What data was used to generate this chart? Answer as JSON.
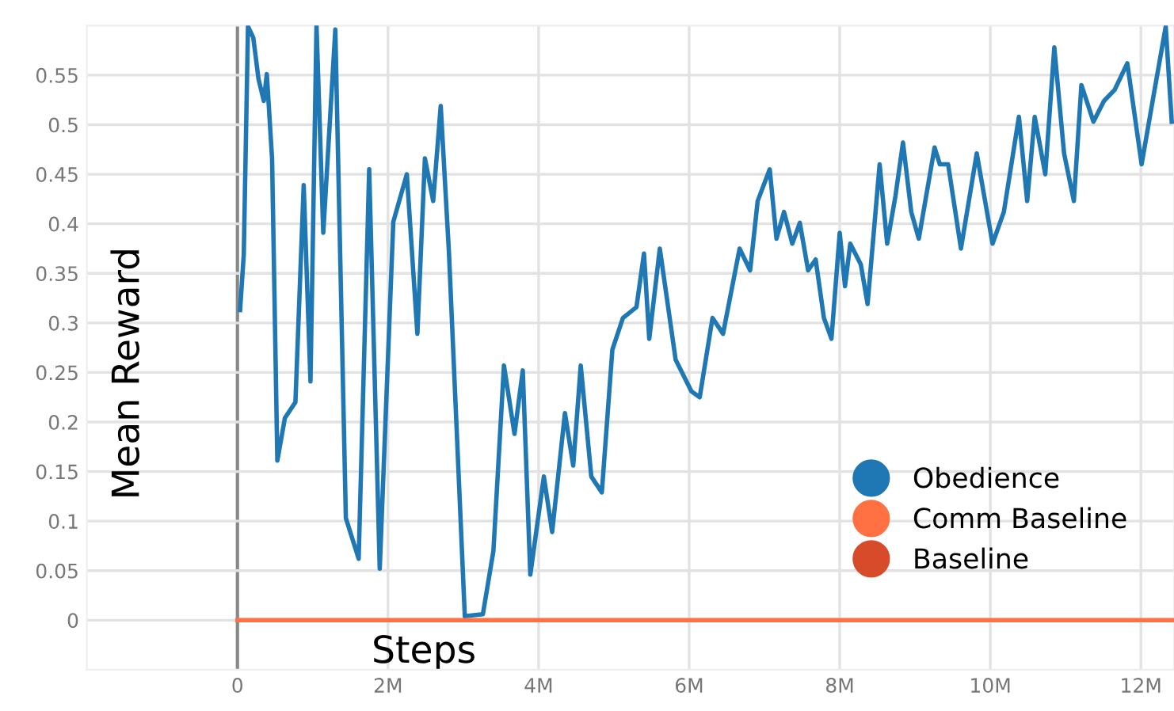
{
  "chart_data": {
    "type": "line",
    "xlabel": "Steps",
    "ylabel": "Mean Reward",
    "xlim": [
      -2000000,
      12440000
    ],
    "ylim": [
      -0.05,
      0.6
    ],
    "xticks": [
      0,
      {
        "value": 2000000,
        "label": "2M"
      },
      {
        "value": 4000000,
        "label": "4M"
      },
      {
        "value": 6000000,
        "label": "6M"
      },
      {
        "value": 8000000,
        "label": "8M"
      },
      {
        "value": 10000000,
        "label": "10M"
      },
      {
        "value": 12000000,
        "label": "12M"
      }
    ],
    "yticks": [
      0,
      0.05,
      0.1,
      0.15,
      0.2,
      0.25,
      0.3,
      0.35,
      0.4,
      0.45,
      0.5,
      0.55
    ],
    "grid": true,
    "legend": "bottom right",
    "line_style": "solid",
    "series": [
      {
        "name": "Obedience",
        "color": "#1f77b4",
        "x": [
          35000,
          84000,
          140000,
          210000,
          280000,
          350000,
          390000,
          460000,
          530000,
          630000,
          770000,
          880000,
          970000,
          1050000,
          1140000,
          1300000,
          1440000,
          1610000,
          1750000,
          1890000,
          2070000,
          2250000,
          2390000,
          2490000,
          2600000,
          2700000,
          2810000,
          3020000,
          3260000,
          3400000,
          3540000,
          3680000,
          3790000,
          3890000,
          4070000,
          4180000,
          4350000,
          4460000,
          4560000,
          4700000,
          4840000,
          4980000,
          5120000,
          5300000,
          5400000,
          5470000,
          5610000,
          5820000,
          6030000,
          6140000,
          6310000,
          6450000,
          6670000,
          6810000,
          6910000,
          7070000,
          7160000,
          7260000,
          7370000,
          7470000,
          7580000,
          7680000,
          7790000,
          7890000,
          8000000,
          8070000,
          8140000,
          8280000,
          8370000,
          8530000,
          8630000,
          8740000,
          8840000,
          8950000,
          9050000,
          9260000,
          9330000,
          9440000,
          9610000,
          9820000,
          10030000,
          10180000,
          10380000,
          10490000,
          10590000,
          10730000,
          10850000,
          10980000,
          11110000,
          11210000,
          11370000,
          11510000,
          11650000,
          11820000,
          12010000,
          12170000,
          12330000,
          12410000
        ],
        "values": [
          0.313,
          0.369,
          0.599,
          0.588,
          0.546,
          0.524,
          0.551,
          0.466,
          0.161,
          0.204,
          0.22,
          0.439,
          0.241,
          0.6,
          0.391,
          0.596,
          0.103,
          0.062,
          0.455,
          0.052,
          0.402,
          0.45,
          0.289,
          0.466,
          0.423,
          0.519,
          0.37,
          0.004,
          0.006,
          0.07,
          0.257,
          0.188,
          0.252,
          0.046,
          0.145,
          0.089,
          0.209,
          0.156,
          0.257,
          0.145,
          0.129,
          0.273,
          0.305,
          0.316,
          0.37,
          0.284,
          0.375,
          0.263,
          0.231,
          0.225,
          0.305,
          0.289,
          0.375,
          0.353,
          0.423,
          0.455,
          0.385,
          0.412,
          0.38,
          0.401,
          0.353,
          0.364,
          0.305,
          0.284,
          0.391,
          0.337,
          0.38,
          0.359,
          0.319,
          0.46,
          0.38,
          0.428,
          0.482,
          0.412,
          0.385,
          0.477,
          0.46,
          0.46,
          0.375,
          0.471,
          0.38,
          0.412,
          0.508,
          0.423,
          0.508,
          0.45,
          0.578,
          0.471,
          0.423,
          0.54,
          0.503,
          0.524,
          0.535,
          0.562,
          0.46,
          0.53,
          0.599,
          0.503
        ]
      },
      {
        "name": "Comm Baseline",
        "color": "#ff7043",
        "x": [
          0,
          12440000
        ],
        "values": [
          0,
          0
        ]
      },
      {
        "name": "Baseline",
        "color": "#d84b2a"
      }
    ]
  }
}
